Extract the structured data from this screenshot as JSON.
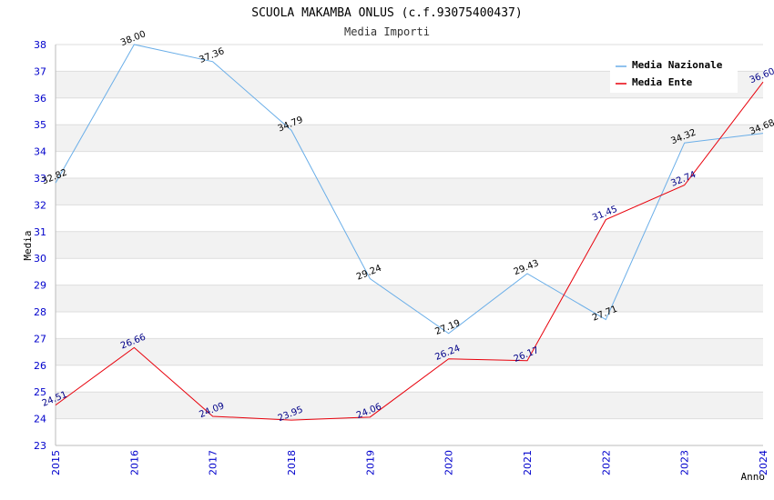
{
  "chart_data": {
    "type": "line",
    "title": "SCUOLA MAKAMBA ONLUS (c.f.93075400437)",
    "subtitle": "Media Importi",
    "xlabel": "Anno",
    "ylabel": "Media",
    "categories": [
      "2015",
      "2016",
      "2017",
      "2018",
      "2019",
      "2020",
      "2021",
      "2022",
      "2023",
      "2024"
    ],
    "ylim": [
      23,
      38
    ],
    "yticks": [
      "23",
      "24",
      "25",
      "26",
      "27",
      "28",
      "29",
      "30",
      "31",
      "32",
      "33",
      "34",
      "35",
      "36",
      "37",
      "38"
    ],
    "grid": true,
    "legend_position": "top-right",
    "series": [
      {
        "name": "Media Nazionale",
        "color": "#6aaee8",
        "label_color": "#000000",
        "values": [
          32.82,
          38.0,
          37.36,
          34.79,
          29.24,
          27.19,
          29.43,
          27.71,
          34.32,
          34.68
        ],
        "labels": [
          "32.82",
          "38.00",
          "37.36",
          "34.79",
          "29.24",
          "27.19",
          "29.43",
          "27.71",
          "34.32",
          "34.68"
        ]
      },
      {
        "name": "Media Ente",
        "color": "#e8000b",
        "label_color": "#000088",
        "values": [
          24.51,
          26.66,
          24.09,
          23.95,
          24.06,
          26.24,
          26.17,
          31.45,
          32.74,
          36.6
        ],
        "labels": [
          "24.51",
          "26.66",
          "24.09",
          "23.95",
          "24.06",
          "26.24",
          "26.17",
          "31.45",
          "32.74",
          "36.60"
        ]
      }
    ]
  }
}
